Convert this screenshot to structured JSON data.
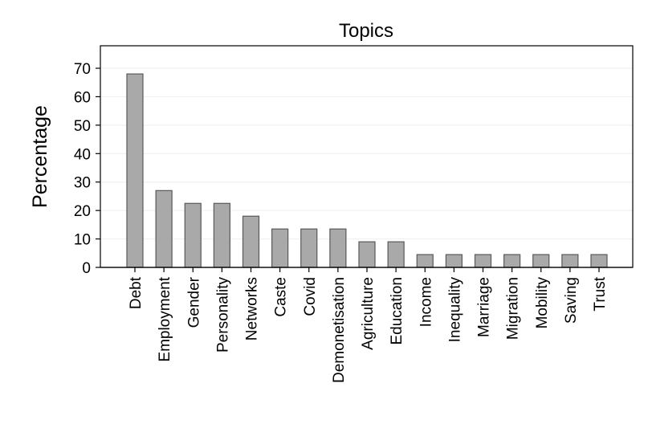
{
  "chart_data": {
    "type": "bar",
    "title": "Topics",
    "xlabel": "",
    "ylabel": "Percentage",
    "categories": [
      "Debt",
      "Employment",
      "Gender",
      "Personality",
      "Networks",
      "Caste",
      "Covid",
      "Demonetisation",
      "Agriculture",
      "Education",
      "Income",
      "Inequality",
      "Marriage",
      "Migration",
      "Mobility",
      "Saving",
      "Trust"
    ],
    "values": [
      68,
      27,
      22.5,
      22.5,
      18,
      13.5,
      13.5,
      13.5,
      9,
      9,
      4.5,
      4.5,
      4.5,
      4.5,
      4.5,
      4.5,
      4.5
    ],
    "yticks": [
      0,
      10,
      20,
      30,
      40,
      50,
      60,
      70
    ],
    "ylim": [
      0,
      77
    ],
    "grid": true,
    "colors": {
      "bar_fill": "#a9a9a9",
      "bar_stroke": "#595959",
      "grid": "#eeeeee",
      "frame": "#000000"
    }
  }
}
